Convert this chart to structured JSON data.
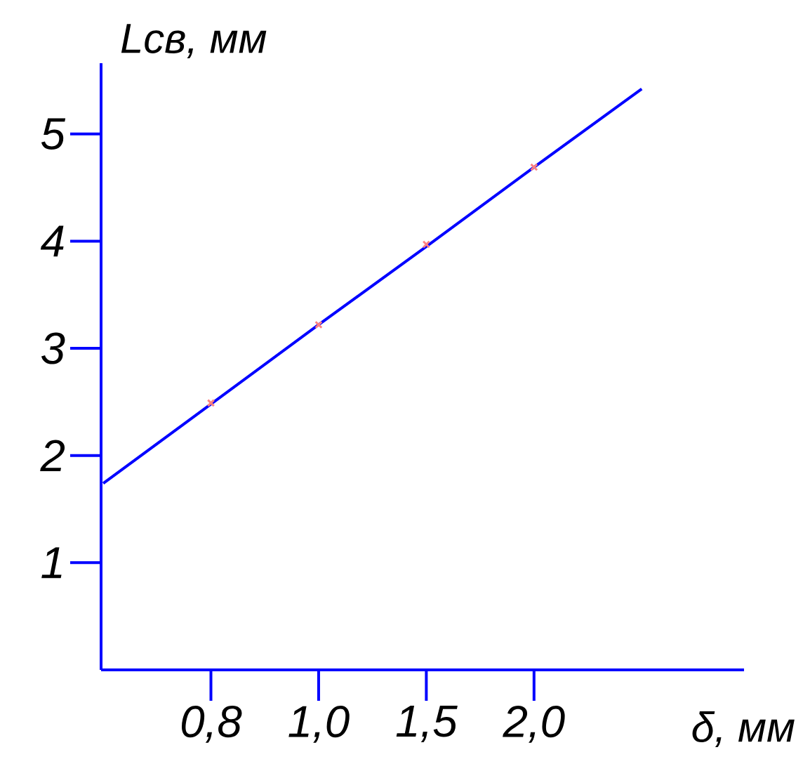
{
  "chart_data": {
    "type": "scatter",
    "xlabel": "δ, мм",
    "ylabel": "Lсв, мм",
    "categories": [
      null,
      "0,8",
      "1,0",
      "1,5",
      "2,0",
      null
    ],
    "ylim": [
      0,
      5.66
    ],
    "yticks": [
      1,
      2,
      3,
      4,
      5
    ],
    "grid": false,
    "series": [
      {
        "color": "#ff8080",
        "marker": "cross",
        "values": [
          null,
          2.49,
          3.22,
          3.97,
          4.69,
          null
        ]
      },
      {
        "type": "line",
        "color": "#0000ff",
        "marker": "none",
        "line_style": "solid",
        "values": [
          1.74,
          2.48,
          3.22,
          3.95,
          4.69,
          5.42
        ]
      }
    ]
  }
}
